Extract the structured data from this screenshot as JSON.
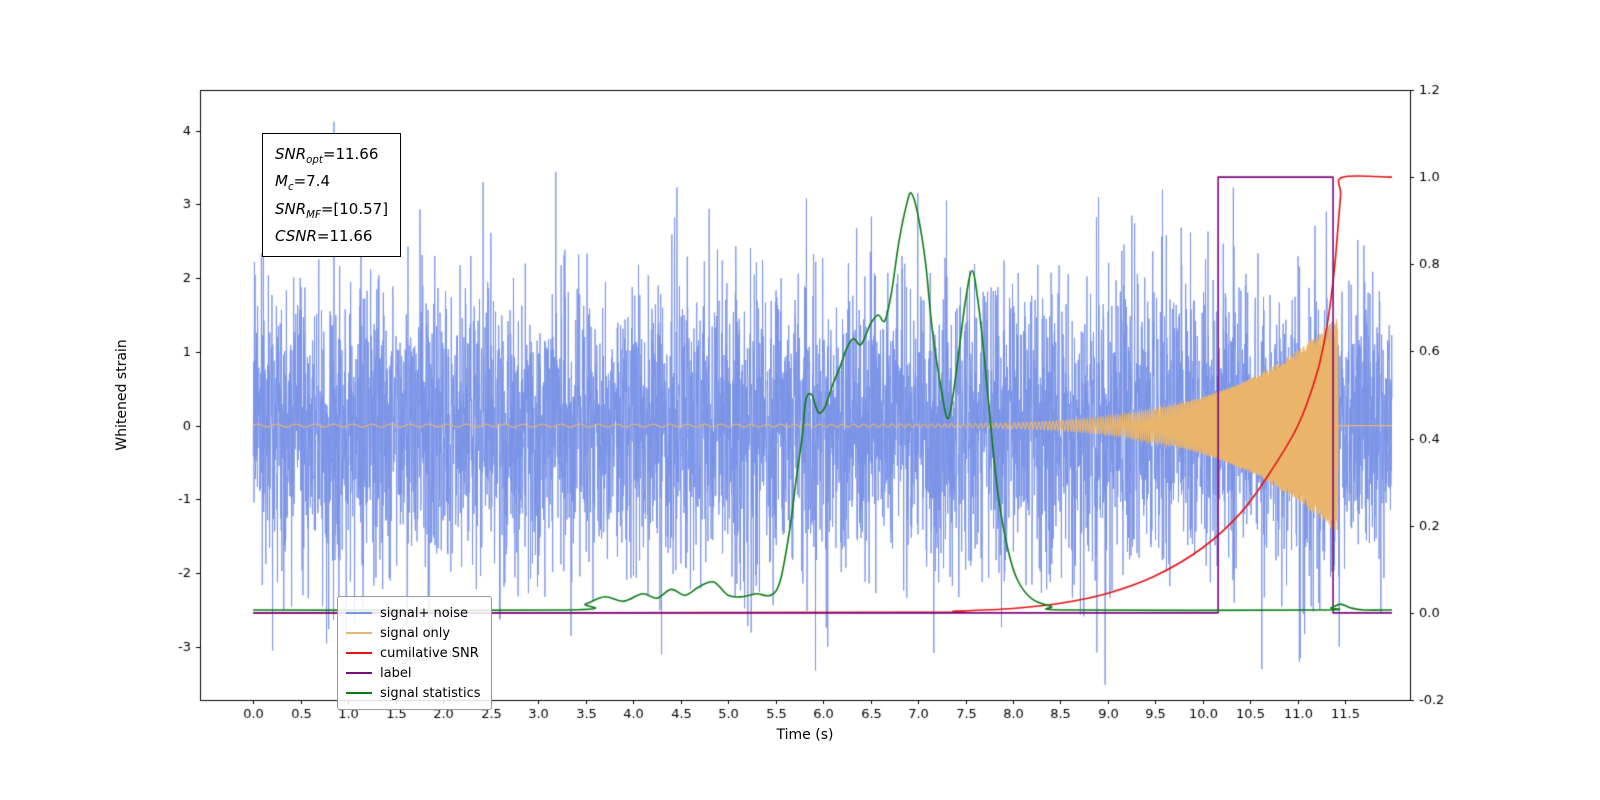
{
  "chart_data": {
    "type": "line",
    "title": "",
    "xlabel": "Time (s)",
    "ylabel": "Whitened strain",
    "xlim": [
      -0.56,
      12.18
    ],
    "ylim_left": [
      -3.72,
      4.55
    ],
    "ylim_right": [
      -0.2,
      1.2
    ],
    "x_ticks": [
      0.0,
      0.5,
      1.0,
      1.5,
      2.0,
      2.5,
      3.0,
      3.5,
      4.0,
      4.5,
      5.0,
      5.5,
      6.0,
      6.5,
      7.0,
      7.5,
      8.0,
      8.5,
      9.0,
      9.5,
      10.0,
      10.5,
      11.0,
      11.5
    ],
    "y_ticks_left": [
      -3,
      -2,
      -1,
      0,
      1,
      2,
      3,
      4
    ],
    "y_ticks_right": [
      -0.2,
      0.0,
      0.2,
      0.4,
      0.6,
      0.8,
      1.0,
      1.2
    ],
    "duration": 11.99,
    "grid": false,
    "legend_position": "lower left",
    "noise": {
      "seed": 20424,
      "sigma": 0.95,
      "n": 5400,
      "color": "#7b93e6"
    },
    "spikes": [
      [
        0.85,
        4.12
      ],
      [
        2.42,
        3.3
      ],
      [
        4.3,
        -3.1
      ],
      [
        5.92,
        -3.32
      ],
      [
        6.05,
        -3.0
      ],
      [
        7.3,
        3.05
      ],
      [
        8.9,
        3.1
      ],
      [
        10.62,
        -3.3
      ],
      [
        11.3,
        2.9
      ]
    ],
    "signal": {
      "color": "#eab56b",
      "t_start": 5.5,
      "t_merger": 11.42,
      "base_amp": 0.02,
      "peak_amp": 1.45,
      "pow": 5,
      "f0": 5,
      "f1": 140,
      "fpow": 6
    },
    "series": {
      "cumulative_snr": {
        "name": "cumilative SNR",
        "color": "#e41414",
        "smooth": true,
        "axis": "right",
        "points": [
          [
            0,
            0
          ],
          [
            6.8,
            0.001
          ],
          [
            7.4,
            0.004
          ],
          [
            8.0,
            0.01
          ],
          [
            8.5,
            0.022
          ],
          [
            9.0,
            0.045
          ],
          [
            9.5,
            0.085
          ],
          [
            10.0,
            0.15
          ],
          [
            10.4,
            0.23
          ],
          [
            10.7,
            0.32
          ],
          [
            11.0,
            0.43
          ],
          [
            11.2,
            0.55
          ],
          [
            11.3,
            0.65
          ],
          [
            11.38,
            0.78
          ],
          [
            11.42,
            0.88
          ],
          [
            11.45,
            0.96
          ],
          [
            11.47,
            1.0
          ],
          [
            11.99,
            1.0
          ]
        ]
      },
      "label": {
        "name": "label",
        "color": "#7d0a7d",
        "smooth": false,
        "axis": "right",
        "points": [
          [
            0,
            0
          ],
          [
            10.16,
            0
          ],
          [
            10.16,
            1
          ],
          [
            11.37,
            1
          ],
          [
            11.37,
            0
          ],
          [
            11.99,
            0
          ]
        ]
      },
      "signal_statistics": {
        "name": "signal statistics",
        "color": "#0b7c14",
        "smooth": true,
        "axis": "left",
        "points": [
          [
            0,
            -2.5
          ],
          [
            3.3,
            -2.5
          ],
          [
            3.5,
            -2.42
          ],
          [
            3.7,
            -2.32
          ],
          [
            3.9,
            -2.38
          ],
          [
            4.1,
            -2.28
          ],
          [
            4.25,
            -2.34
          ],
          [
            4.4,
            -2.22
          ],
          [
            4.55,
            -2.3
          ],
          [
            4.7,
            -2.18
          ],
          [
            4.85,
            -2.12
          ],
          [
            5.0,
            -2.3
          ],
          [
            5.15,
            -2.32
          ],
          [
            5.3,
            -2.28
          ],
          [
            5.45,
            -2.3
          ],
          [
            5.55,
            -2.1
          ],
          [
            5.65,
            -1.4
          ],
          [
            5.72,
            -0.7
          ],
          [
            5.78,
            -0.15
          ],
          [
            5.82,
            0.35
          ],
          [
            5.88,
            0.42
          ],
          [
            5.95,
            0.18
          ],
          [
            6.02,
            0.25
          ],
          [
            6.1,
            0.55
          ],
          [
            6.18,
            0.8
          ],
          [
            6.25,
            1.05
          ],
          [
            6.32,
            1.18
          ],
          [
            6.4,
            1.1
          ],
          [
            6.5,
            1.38
          ],
          [
            6.58,
            1.5
          ],
          [
            6.65,
            1.42
          ],
          [
            6.72,
            1.8
          ],
          [
            6.8,
            2.5
          ],
          [
            6.88,
            3.0
          ],
          [
            6.93,
            3.15
          ],
          [
            7.0,
            2.85
          ],
          [
            7.08,
            2.2
          ],
          [
            7.15,
            1.3
          ],
          [
            7.25,
            0.45
          ],
          [
            7.32,
            0.1
          ],
          [
            7.4,
            0.7
          ],
          [
            7.5,
            1.7
          ],
          [
            7.57,
            2.1
          ],
          [
            7.63,
            1.7
          ],
          [
            7.7,
            0.9
          ],
          [
            7.78,
            -0.2
          ],
          [
            7.85,
            -1.0
          ],
          [
            7.95,
            -1.7
          ],
          [
            8.05,
            -2.1
          ],
          [
            8.2,
            -2.35
          ],
          [
            8.4,
            -2.45
          ],
          [
            8.6,
            -2.5
          ],
          [
            11.2,
            -2.5
          ],
          [
            11.35,
            -2.47
          ],
          [
            11.45,
            -2.42
          ],
          [
            11.55,
            -2.47
          ],
          [
            11.7,
            -2.5
          ],
          [
            11.99,
            -2.5
          ]
        ]
      }
    },
    "legend": [
      {
        "label": "signal+ noise",
        "color": "#7b93e6"
      },
      {
        "label": "signal only",
        "color": "#eab56b"
      },
      {
        "label": "cumilative SNR",
        "color": "#e41414"
      },
      {
        "label": "label",
        "color": "#7d0a7d"
      },
      {
        "label": "signal statistics",
        "color": "#0b7c14"
      }
    ],
    "annotation": {
      "lines": [
        {
          "pre": "SNR",
          "sub": "opt",
          "post": "=11.66"
        },
        {
          "pre": "M",
          "sub": "c",
          "post": "=7.4"
        },
        {
          "pre": "SNR",
          "sub": "MF",
          "post": "=[10.57]"
        },
        {
          "pre": "CSNR",
          "sub": "",
          "post": "=11.66"
        }
      ]
    },
    "ghost_text": "signal only"
  }
}
